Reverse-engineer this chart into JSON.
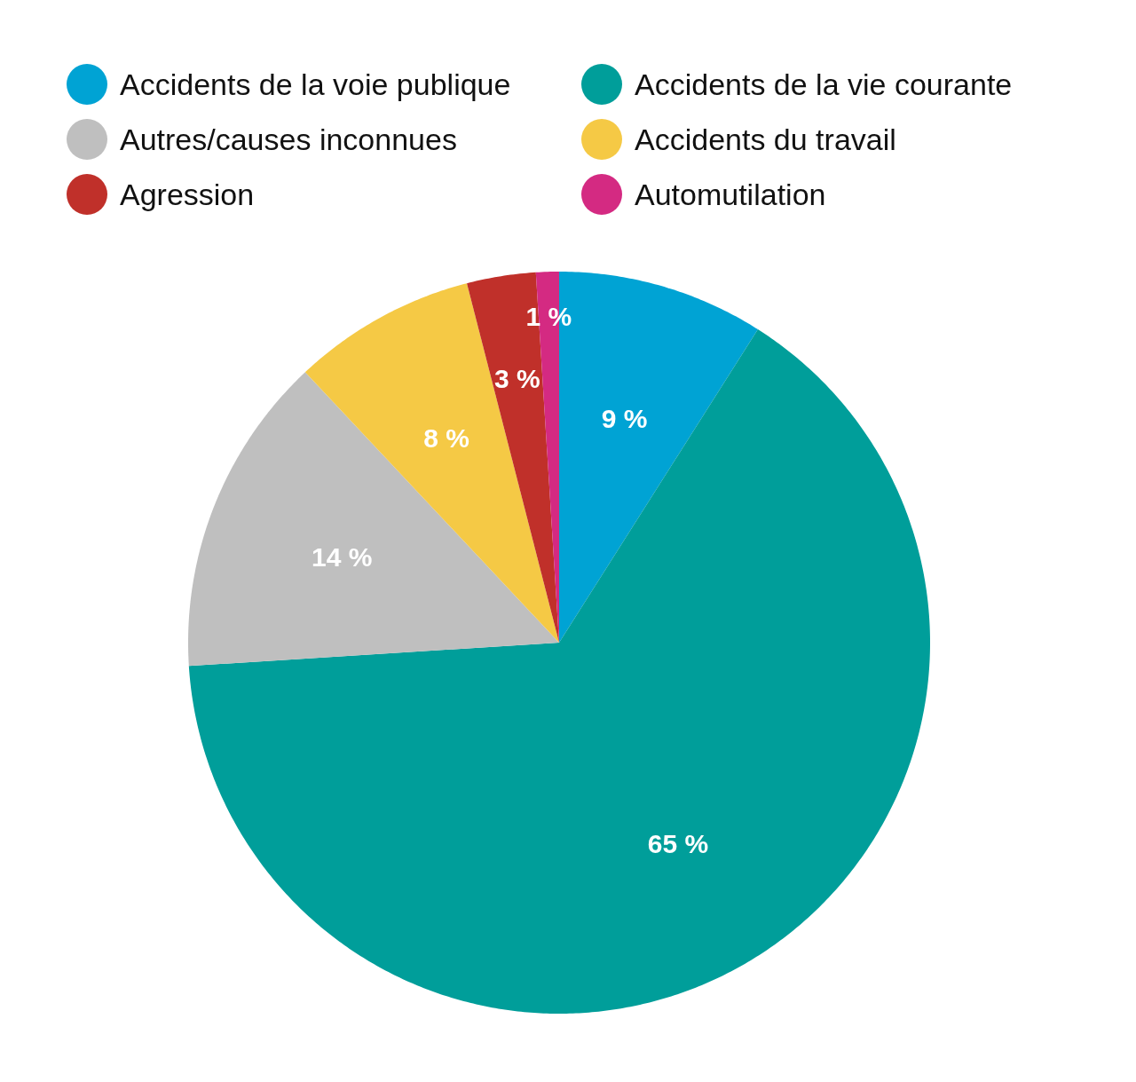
{
  "chart_data": {
    "type": "pie",
    "categories": [
      "Accidents de la voie publique",
      "Accidents de la vie courante",
      "Autres/causes inconnues",
      "Accidents du travail",
      "Agression",
      "Automutilation"
    ],
    "values": [
      9,
      65,
      14,
      8,
      3,
      1
    ],
    "value_labels": [
      "9 %",
      "65 %",
      "14 %",
      "8 %",
      "3 %",
      "1 %"
    ],
    "colors": [
      "#00a3d4",
      "#009e9a",
      "#bfbfbf",
      "#f5c945",
      "#c0302a",
      "#d42a82"
    ],
    "legend": "top"
  }
}
